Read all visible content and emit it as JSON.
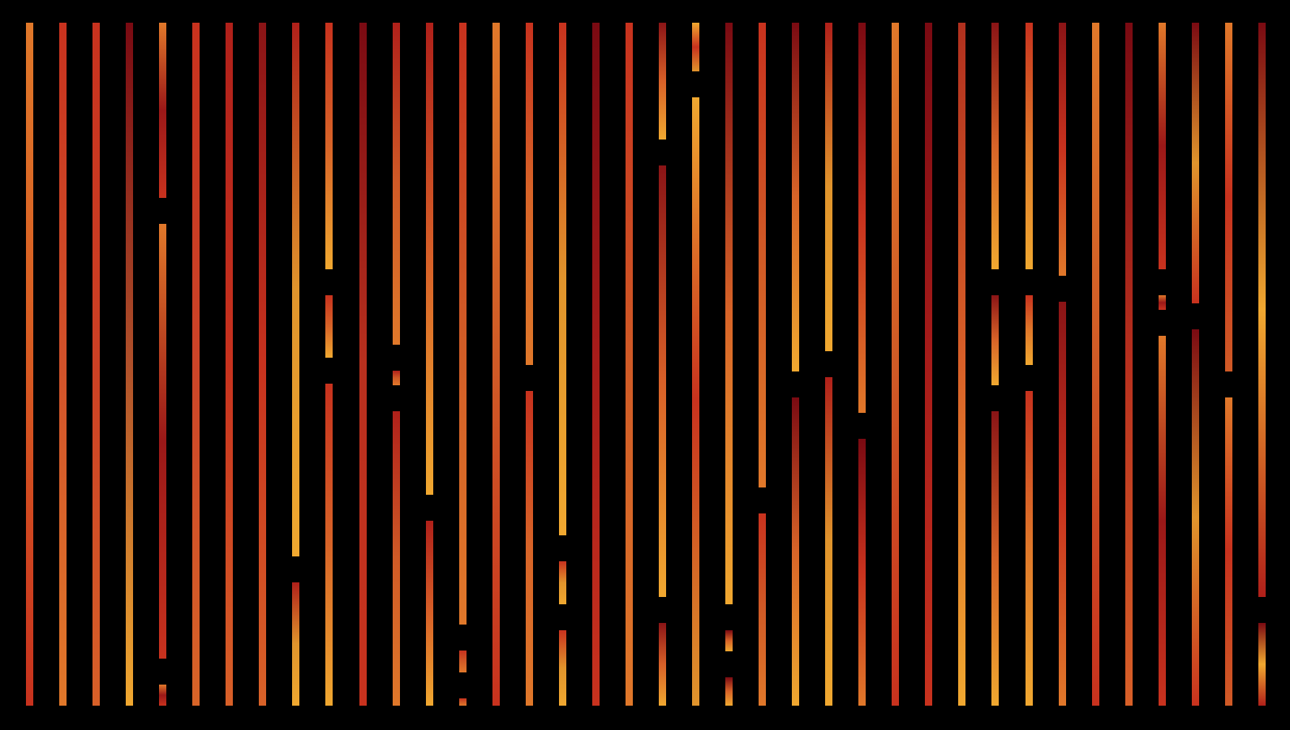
{
  "palette": {
    "background": "#000000",
    "dark_red": "#7a0a12",
    "red": "#c8321e",
    "orange": "#e0782a",
    "yellow_orange": "#f0a830"
  },
  "columns": [
    {
      "breaks": [],
      "gradient": [
        "#e0782a",
        "#d85a22",
        "#c8321e"
      ]
    },
    {
      "breaks": [],
      "gradient": [
        "#c8321e",
        "#d2522a",
        "#e0782a"
      ]
    },
    {
      "breaks": [],
      "gradient": [
        "#c8321e",
        "#cc4024",
        "#d86028"
      ]
    },
    {
      "breaks": [],
      "gradient": [
        "#7a0a12",
        "#b0502a",
        "#f0a830"
      ]
    },
    {
      "breaks": [
        0.275,
        0.95
      ],
      "gradient": [
        "#e0782a",
        "#9a1818",
        "#c8321e"
      ]
    },
    {
      "breaks": [],
      "gradient": [
        "#c8321e",
        "#cc4428",
        "#d86428"
      ]
    },
    {
      "breaks": [],
      "gradient": [
        "#b0201a",
        "#c8321e",
        "#d86028"
      ]
    },
    {
      "breaks": [],
      "gradient": [
        "#8a1416",
        "#c8321e",
        "#d86228"
      ]
    },
    {
      "breaks": [
        0.8
      ],
      "gradient": [
        "#b0201a",
        "#e0942c",
        "#f0a830"
      ]
    },
    {
      "breaks": [
        0.38,
        0.51
      ],
      "gradient": [
        "#c8321e",
        "#d86428",
        "#f0a830"
      ]
    },
    {
      "breaks": [],
      "gradient": [
        "#7a0a12",
        "#b8301e",
        "#c8321e"
      ]
    },
    {
      "breaks": [
        0.49,
        0.55
      ],
      "gradient": [
        "#b0201a",
        "#d05a26",
        "#e0782a"
      ]
    },
    {
      "breaks": [
        0.71
      ],
      "gradient": [
        "#b0201a",
        "#d86028",
        "#f0a830"
      ]
    },
    {
      "breaks": [
        0.9,
        0.97
      ],
      "gradient": [
        "#c8321e",
        "#d05a26",
        "#e0782a"
      ]
    },
    {
      "breaks": [],
      "gradient": [
        "#e0782a",
        "#d05a26",
        "#c8321e"
      ]
    },
    {
      "breaks": [
        0.52
      ],
      "gradient": [
        "#c8321e",
        "#d86428",
        "#e0782a"
      ]
    },
    {
      "breaks": [
        0.77,
        0.87
      ],
      "gradient": [
        "#c8321e",
        "#e0942c",
        "#f0a830"
      ]
    },
    {
      "breaks": [],
      "gradient": [
        "#7a0a12",
        "#a81c1a",
        "#c8321e"
      ]
    },
    {
      "breaks": [],
      "gradient": [
        "#c8321e",
        "#d05a26",
        "#e0782a"
      ]
    },
    {
      "breaks": [
        0.19,
        0.86
      ],
      "gradient": [
        "#8a1416",
        "#d86028",
        "#f0a830"
      ]
    },
    {
      "breaks": [
        0.09
      ],
      "gradient": [
        "#f0a830",
        "#c8321e",
        "#e0942c"
      ]
    },
    {
      "breaks": [
        0.87,
        0.94
      ],
      "gradient": [
        "#7a0a12",
        "#d86428",
        "#f0a830"
      ]
    },
    {
      "breaks": [
        0.7
      ],
      "gradient": [
        "#c8321e",
        "#d05a26",
        "#e0782a"
      ]
    },
    {
      "breaks": [
        0.53
      ],
      "gradient": [
        "#7a0a12",
        "#d86428",
        "#f0a830"
      ]
    },
    {
      "breaks": [
        0.5
      ],
      "gradient": [
        "#b0201a",
        "#e0942c",
        "#f0a830"
      ]
    },
    {
      "breaks": [
        0.59
      ],
      "gradient": [
        "#7a0a12",
        "#c8321e",
        "#e0782a"
      ]
    },
    {
      "breaks": [],
      "gradient": [
        "#e0782a",
        "#d05a26",
        "#c8321e"
      ]
    },
    {
      "breaks": [],
      "gradient": [
        "#7a0a12",
        "#a81c1a",
        "#c8321e"
      ]
    },
    {
      "breaks": [],
      "gradient": [
        "#b0301e",
        "#d86028",
        "#f0a830"
      ]
    },
    {
      "breaks": [
        0.38,
        0.55
      ],
      "gradient": [
        "#8a1416",
        "#d86428",
        "#f0a830"
      ]
    },
    {
      "breaks": [
        0.38,
        0.52
      ],
      "gradient": [
        "#c8321e",
        "#e0782a",
        "#f0a830"
      ]
    },
    {
      "breaks": [
        0.39
      ],
      "gradient": [
        "#8a1416",
        "#c8321e",
        "#e0782a"
      ]
    },
    {
      "breaks": [],
      "gradient": [
        "#e0782a",
        "#d05a26",
        "#c8321e"
      ]
    },
    {
      "breaks": [],
      "gradient": [
        "#7a0a12",
        "#b8301e",
        "#d86028"
      ]
    },
    {
      "breaks": [
        0.38,
        0.44
      ],
      "gradient": [
        "#e0782a",
        "#9a1818",
        "#c8321e"
      ]
    },
    {
      "breaks": [
        0.43
      ],
      "gradient": [
        "#7a0a12",
        "#e0942c",
        "#c8321e"
      ]
    },
    {
      "breaks": [
        0.53
      ],
      "gradient": [
        "#e0782a",
        "#c8321e",
        "#d05a26"
      ]
    },
    {
      "breaks": [
        0.86
      ],
      "gradient": [
        "#7a0a12",
        "#f0a830",
        "#b0201a"
      ]
    }
  ]
}
